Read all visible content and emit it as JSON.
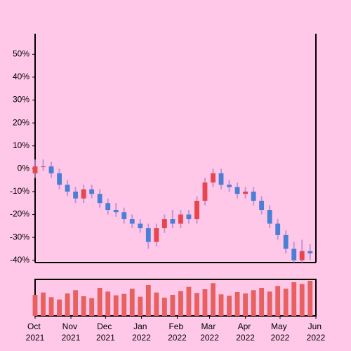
{
  "chart_data": {
    "type": "candlestick",
    "x": [
      0,
      7,
      14,
      21,
      28,
      35,
      42,
      49,
      56,
      63,
      70,
      77,
      84,
      91,
      98,
      105,
      112,
      119,
      126,
      133,
      140,
      147,
      154,
      161,
      168,
      175,
      182,
      189,
      196,
      203,
      210,
      217,
      224,
      231,
      238
    ],
    "open": [
      -2,
      1,
      1,
      -2,
      -7,
      -10,
      -13,
      -9,
      -11,
      -15,
      -18,
      -19,
      -22,
      -24,
      -26,
      -32,
      -26,
      -22,
      -24,
      -20,
      -22,
      -14,
      -6,
      -2,
      -7,
      -8,
      -11,
      -10,
      -14,
      -18,
      -24,
      -29,
      -35,
      -40,
      -36
    ],
    "high": [
      4,
      4,
      3,
      0,
      -5,
      -8,
      -7,
      -7,
      -9,
      -13,
      -15,
      -17,
      -20,
      -22,
      -24,
      -24,
      -20,
      -18,
      -18,
      -18,
      -12,
      -4,
      0,
      0,
      -5,
      -6,
      -8,
      -8,
      -12,
      -16,
      -22,
      -27,
      -32,
      -31,
      -33
    ],
    "low": [
      -4,
      -1,
      -4,
      -9,
      -12,
      -15,
      -15,
      -13,
      -17,
      -20,
      -21,
      -24,
      -26,
      -28,
      -35,
      -34,
      -28,
      -26,
      -26,
      -24,
      -24,
      -16,
      -8,
      -9,
      -10,
      -13,
      -13,
      -16,
      -20,
      -26,
      -31,
      -37,
      -41,
      -41,
      -40
    ],
    "close": [
      1,
      1,
      -2,
      -7,
      -10,
      -13,
      -9,
      -11,
      -15,
      -18,
      -19,
      -22,
      -24,
      -26,
      -32,
      -26,
      -22,
      -24,
      -20,
      -22,
      -14,
      -6,
      -2,
      -7,
      -8,
      -11,
      -10,
      -14,
      -18,
      -24,
      -29,
      -35,
      -40,
      -36,
      -37
    ],
    "volume": [
      45,
      50,
      40,
      35,
      48,
      55,
      42,
      38,
      60,
      52,
      44,
      47,
      58,
      41,
      66,
      50,
      39,
      45,
      53,
      62,
      49,
      57,
      70,
      46,
      43,
      51,
      48,
      55,
      60,
      52,
      64,
      58,
      72,
      68,
      75
    ],
    "up_color": "#e8454f",
    "down_color": "#4a7fd6",
    "wick_color": "#b08ad0",
    "volume_color": "#e86060",
    "xlim": [
      0,
      243
    ],
    "xticks": [
      {
        "value": 0,
        "label": "Oct 2021"
      },
      {
        "value": 31,
        "label": "Nov 2021"
      },
      {
        "value": 61,
        "label": "Dec 2021"
      },
      {
        "value": 92,
        "label": "Jan 2022"
      },
      {
        "value": 123,
        "label": "Feb 2022"
      },
      {
        "value": 151,
        "label": "Mar 2022"
      },
      {
        "value": 182,
        "label": "Apr 2022"
      },
      {
        "value": 212,
        "label": "May 2022"
      },
      {
        "value": 243,
        "label": "Jun 2022"
      }
    ],
    "ylim": [
      -41,
      59
    ],
    "yticks": [
      {
        "value": -40,
        "label": "-40%"
      },
      {
        "value": -30,
        "label": "-30%"
      },
      {
        "value": -20,
        "label": "-20%"
      },
      {
        "value": -10,
        "label": "-10%"
      },
      {
        "value": 0,
        "label": "0%"
      },
      {
        "value": 10,
        "label": "10%"
      },
      {
        "value": 20,
        "label": "20%"
      },
      {
        "value": 30,
        "label": "30%"
      },
      {
        "value": 40,
        "label": "40%"
      },
      {
        "value": 50,
        "label": "50%"
      }
    ]
  }
}
